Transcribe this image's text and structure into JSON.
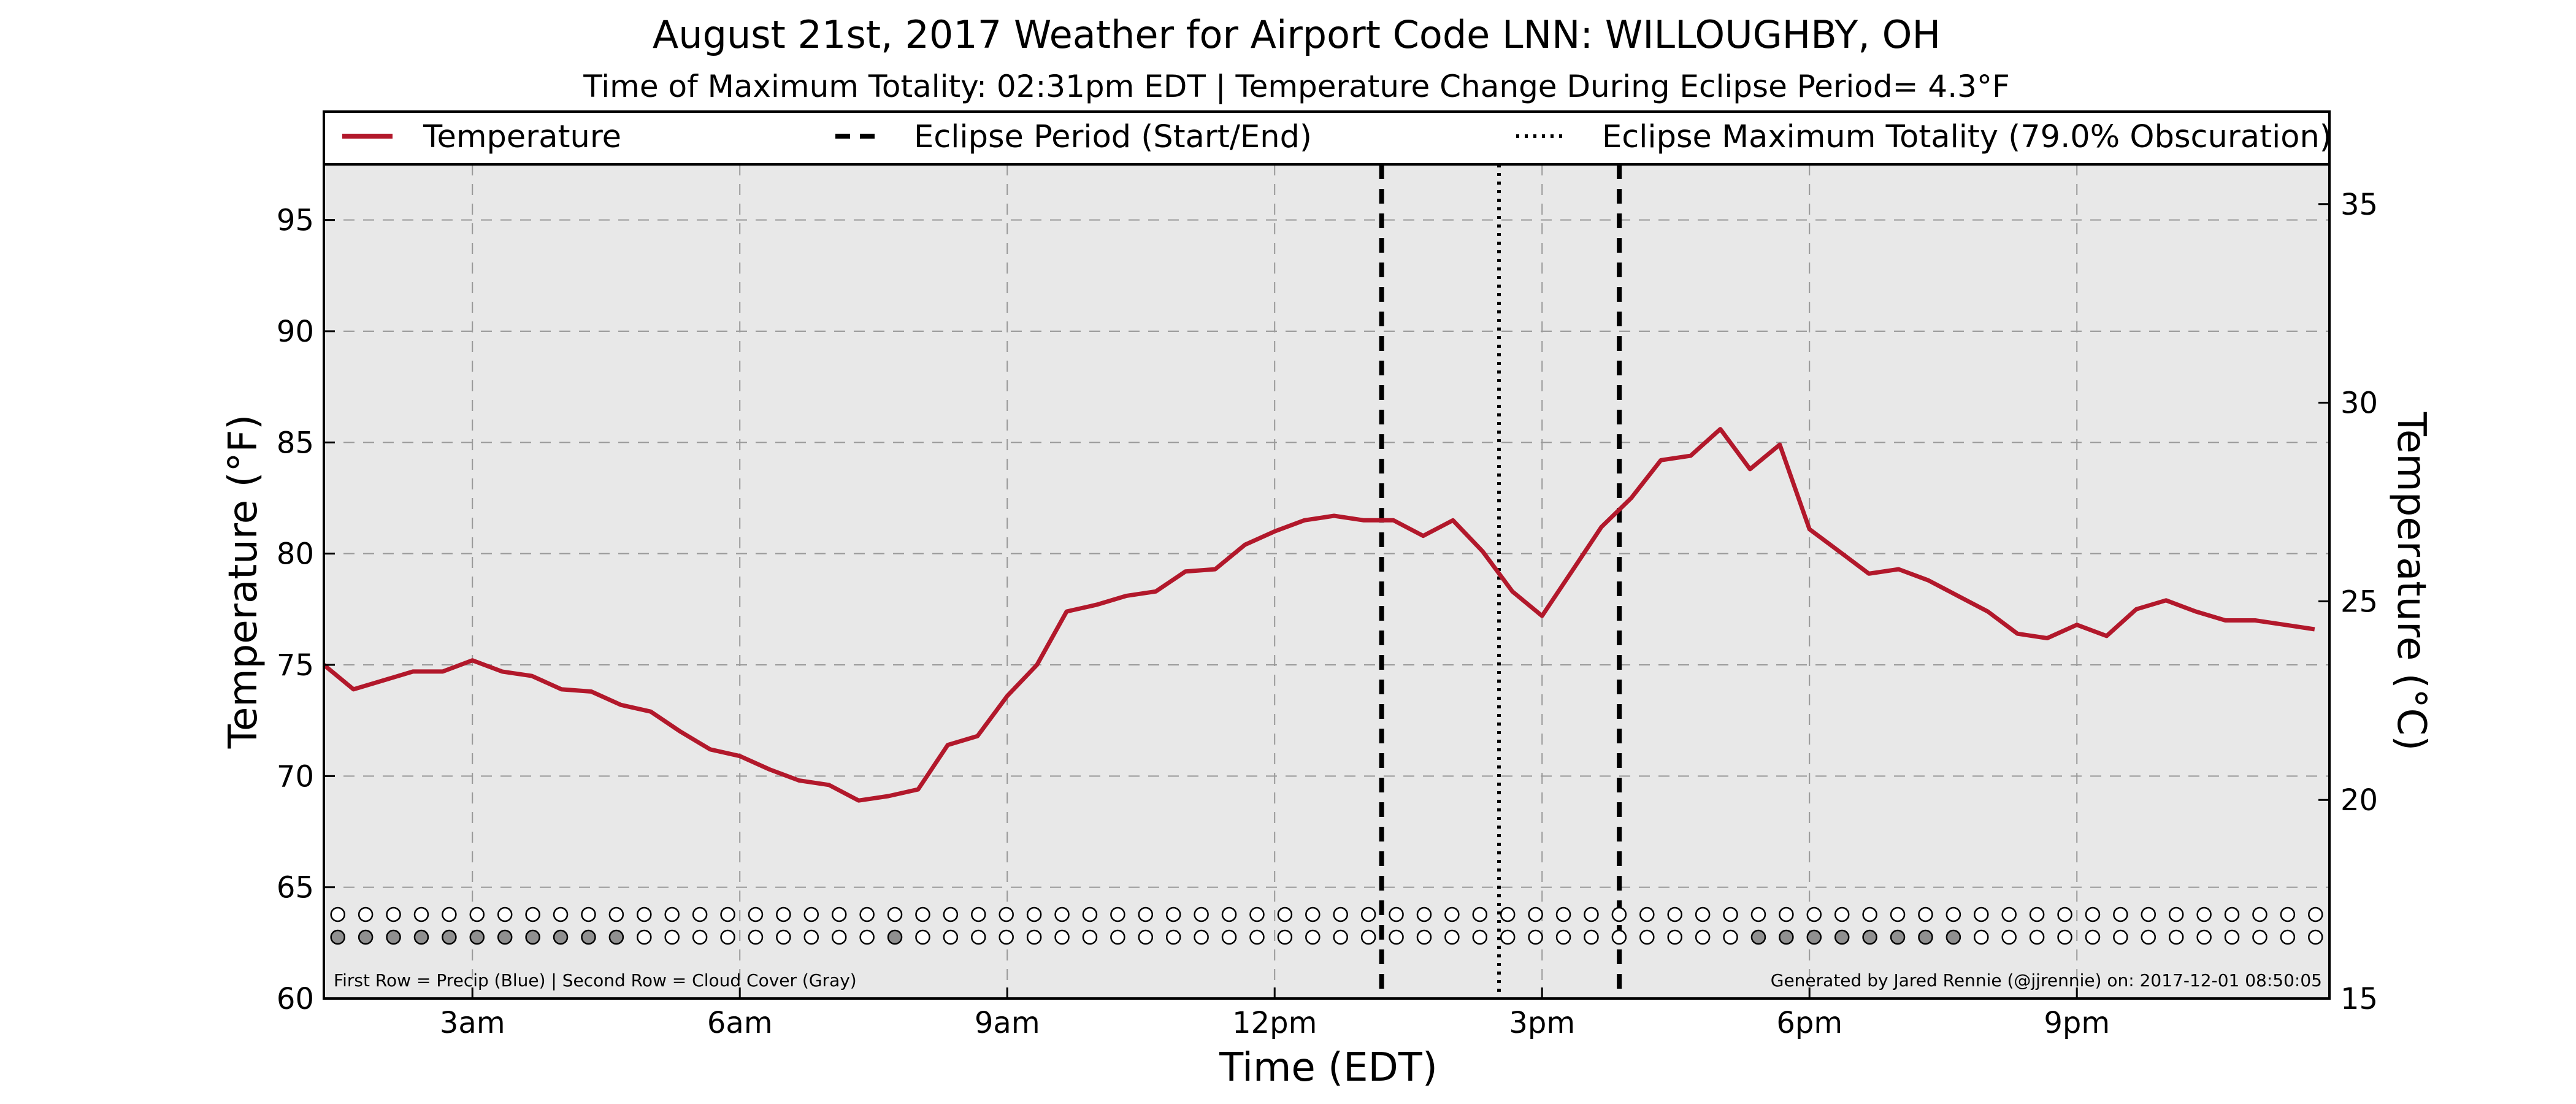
{
  "chart_data": {
    "type": "line",
    "title": "August 21st, 2017 Weather for Airport Code LNN: WILLOUGHBY, OH",
    "subtitle": "Time of Maximum Totality: 02:31pm EDT | Temperature Change During Eclipse Period= 4.3°F",
    "xlabel": "Time (EDT)",
    "ylabel": "Temperature (°F)",
    "ylabel_right": "Temperature (°C)",
    "xlim": [
      "1:20am",
      "11:50pm"
    ],
    "ylim": [
      60,
      97.5
    ],
    "ylim_right_celsius": [
      15,
      36
    ],
    "x_ticks": [
      "3am",
      "6am",
      "9am",
      "12pm",
      "3pm",
      "6pm",
      "9pm"
    ],
    "y_ticks": [
      60,
      65,
      70,
      75,
      80,
      85,
      90,
      95
    ],
    "y_ticks_right": [
      15,
      20,
      25,
      30,
      35
    ],
    "grid": true,
    "legend_position": "top",
    "legend": [
      {
        "label": "Temperature",
        "style": "solid",
        "color": "#b2182b"
      },
      {
        "label": "Eclipse Period (Start/End)",
        "style": "dashed",
        "color": "#000000"
      },
      {
        "label": "Eclipse Maximum Totality (79.0% Obscuration)",
        "style": "dotted",
        "color": "#000000"
      }
    ],
    "series": [
      {
        "name": "Temperature",
        "color": "#b2182b",
        "x": [
          "1:20am",
          "1:40am",
          "2:00am",
          "2:20am",
          "2:40am",
          "3:00am",
          "3:20am",
          "3:40am",
          "4:00am",
          "4:20am",
          "4:40am",
          "5:00am",
          "5:20am",
          "5:40am",
          "6:00am",
          "6:20am",
          "6:40am",
          "7:00am",
          "7:20am",
          "7:40am",
          "8:00am",
          "8:20am",
          "8:40am",
          "9:00am",
          "9:20am",
          "9:40am",
          "10:00am",
          "10:20am",
          "10:40am",
          "11:00am",
          "11:20am",
          "11:40am",
          "12:00pm",
          "12:20pm",
          "12:40pm",
          "1:00pm",
          "1:20pm",
          "1:40pm",
          "2:00pm",
          "2:20pm",
          "2:40pm",
          "3:00pm",
          "3:20pm",
          "3:40pm",
          "4:00pm",
          "4:20pm",
          "4:40pm",
          "5:00pm",
          "5:20pm",
          "5:40pm",
          "6:00pm",
          "6:20pm",
          "6:40pm",
          "7:00pm",
          "7:20pm",
          "7:40pm",
          "8:00pm",
          "8:20pm",
          "8:40pm",
          "9:00pm",
          "9:20pm",
          "9:40pm",
          "10:00pm",
          "10:20pm",
          "10:40pm",
          "11:00pm",
          "11:20pm",
          "11:40pm"
        ],
        "values": [
          75.0,
          73.9,
          74.3,
          74.7,
          74.7,
          75.2,
          74.7,
          74.5,
          73.9,
          73.8,
          73.2,
          72.9,
          72.0,
          71.2,
          70.9,
          70.3,
          69.8,
          69.6,
          68.9,
          69.1,
          69.4,
          71.4,
          71.8,
          73.6,
          75.0,
          77.4,
          77.7,
          78.1,
          78.3,
          79.2,
          79.3,
          80.4,
          81.0,
          81.5,
          81.7,
          81.5,
          81.5,
          80.8,
          81.5,
          80.1,
          78.3,
          77.2,
          79.2,
          81.2,
          82.5,
          84.2,
          84.4,
          85.6,
          83.8,
          84.9,
          81.1,
          80.1,
          79.1,
          79.3,
          78.8,
          78.1,
          77.4,
          76.4,
          76.2,
          76.8,
          76.3,
          77.5,
          77.9,
          77.4,
          77.0,
          77.0,
          76.8,
          76.6
        ]
      }
    ],
    "eclipse_start": "1:12pm",
    "eclipse_max": "2:31pm",
    "eclipse_end": "3:52pm",
    "markers_row1_label": "Precip",
    "markers_row1": [
      0,
      0,
      0,
      0,
      0,
      0,
      0,
      0,
      0,
      0,
      0,
      0,
      0,
      0,
      0,
      0,
      0,
      0,
      0,
      0,
      0,
      0,
      0,
      0,
      0,
      0,
      0,
      0,
      0,
      0,
      0,
      0,
      0,
      0,
      0,
      0,
      0,
      0,
      0,
      0,
      0,
      0,
      0,
      0,
      0,
      0,
      0,
      0,
      0,
      0,
      0,
      0,
      0,
      0,
      0,
      0,
      0,
      0,
      0,
      0,
      0,
      0,
      0,
      0,
      0,
      0,
      0,
      0,
      0,
      0,
      0,
      0
    ],
    "markers_row2_label": "Cloud Cover",
    "markers_row2": [
      1,
      1,
      1,
      1,
      1,
      1,
      1,
      1,
      1,
      1,
      1,
      0,
      0,
      0,
      0,
      0,
      0,
      0,
      0,
      0,
      1,
      0,
      0,
      0,
      0,
      0,
      0,
      0,
      0,
      0,
      0,
      0,
      0,
      0,
      0,
      0,
      0,
      0,
      0,
      0,
      0,
      0,
      0,
      0,
      0,
      0,
      0,
      0,
      0,
      0,
      0,
      1,
      1,
      1,
      1,
      1,
      1,
      1,
      1,
      0,
      0,
      0,
      0,
      0,
      0,
      0,
      0,
      0,
      0,
      0,
      0,
      0
    ],
    "precip_color": "#1f77b4",
    "cloud_color": "#909090",
    "footnote_left": "First Row = Precip (Blue) | Second Row = Cloud Cover (Gray)",
    "footnote_right": "Generated by Jared Rennie (@jjrennie) on: 2017-12-01 08:50:05",
    "background_color": "#e8e8e8"
  }
}
